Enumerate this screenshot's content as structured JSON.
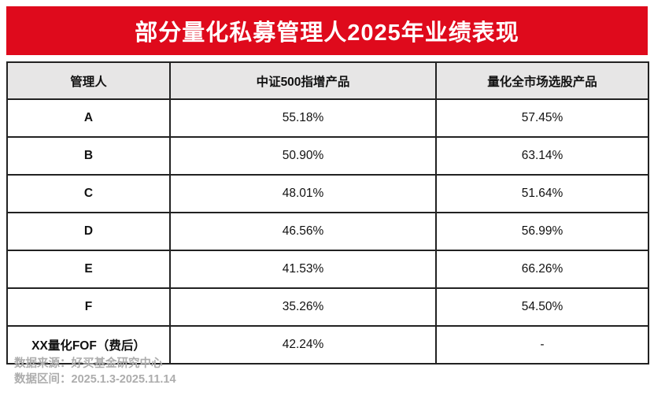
{
  "banner": {
    "title": "部分量化私募管理人2025年业绩表现"
  },
  "table": {
    "headers": [
      "管理人",
      "中证500指增产品",
      "量化全市场选股产品"
    ],
    "rows": [
      [
        "A",
        "55.18%",
        "57.45%"
      ],
      [
        "B",
        "50.90%",
        "63.14%"
      ],
      [
        "C",
        "48.01%",
        "51.64%"
      ],
      [
        "D",
        "46.56%",
        "56.99%"
      ],
      [
        "E",
        "41.53%",
        "66.26%"
      ],
      [
        "F",
        "35.26%",
        "54.50%"
      ],
      [
        "XX量化FOF（费后）",
        "42.24%",
        "-"
      ]
    ]
  },
  "footer": {
    "source_line": "数据来源：好买基金研究中心",
    "period_line": "数据区间：2025.1.3-2025.11.14"
  },
  "colors": {
    "banner_red": "#df0a1c",
    "header_gray": "#e7e6e6",
    "border_dark": "#222222",
    "footer_gray": "#adadad"
  },
  "chart_data": {
    "type": "table",
    "title": "部分量化私募管理人2025年业绩表现",
    "columns": [
      "管理人",
      "中证500指增产品",
      "量化全市场选股产品"
    ],
    "rows": [
      {
        "manager": "A",
        "csi500_enhanced": "55.18%",
        "all_market_selection": "57.45%"
      },
      {
        "manager": "B",
        "csi500_enhanced": "50.90%",
        "all_market_selection": "63.14%"
      },
      {
        "manager": "C",
        "csi500_enhanced": "48.01%",
        "all_market_selection": "51.64%"
      },
      {
        "manager": "D",
        "csi500_enhanced": "46.56%",
        "all_market_selection": "56.99%"
      },
      {
        "manager": "E",
        "csi500_enhanced": "41.53%",
        "all_market_selection": "66.26%"
      },
      {
        "manager": "F",
        "csi500_enhanced": "35.26%",
        "all_market_selection": "54.50%"
      },
      {
        "manager": "XX量化FOF（费后）",
        "csi500_enhanced": "42.24%",
        "all_market_selection": "-"
      }
    ],
    "source": "好买基金研究中心",
    "period": "2025.1.3-2025.11.14"
  }
}
